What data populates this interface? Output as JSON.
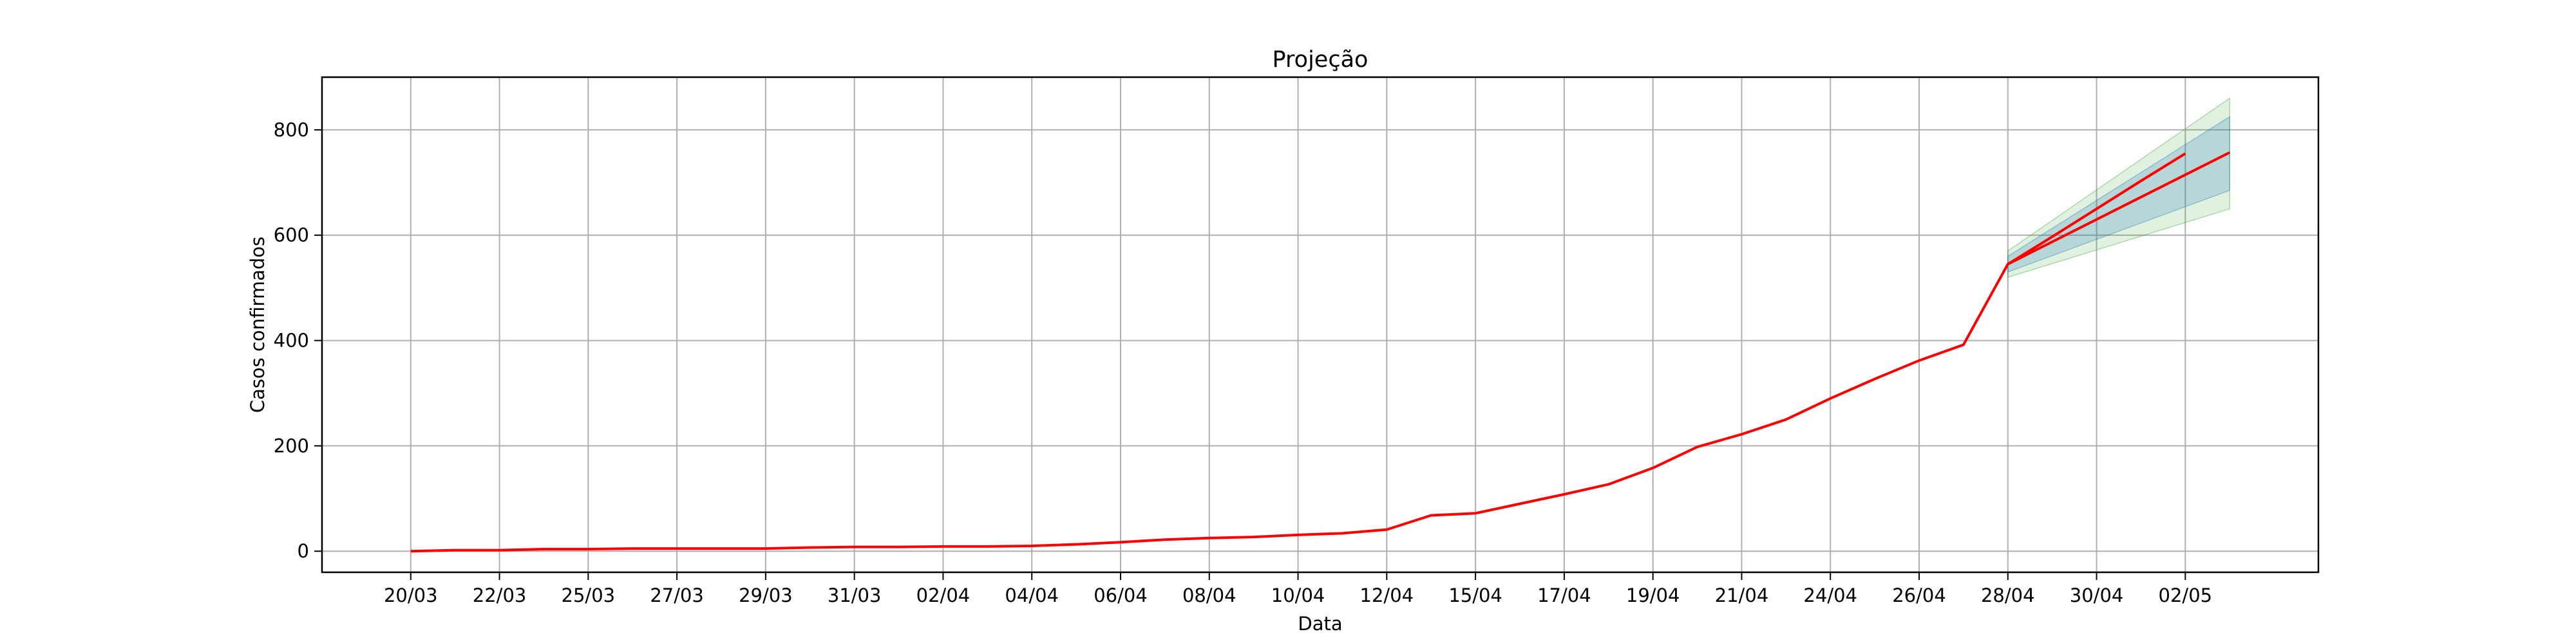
{
  "chart_data": {
    "type": "line",
    "title": "Projeção",
    "xlabel": "Data",
    "ylabel": "Casos confirmados",
    "grid": true,
    "xlim": [
      -1,
      21.5
    ],
    "ylim": [
      -40,
      900
    ],
    "y_ticks": [
      0,
      200,
      400,
      600,
      800
    ],
    "x_ticks": [
      {
        "x": 0,
        "label": "20/03"
      },
      {
        "x": 1,
        "label": "22/03"
      },
      {
        "x": 2,
        "label": "25/03"
      },
      {
        "x": 3,
        "label": "27/03"
      },
      {
        "x": 4,
        "label": "29/03"
      },
      {
        "x": 5,
        "label": "31/03"
      },
      {
        "x": 6,
        "label": "02/04"
      },
      {
        "x": 7,
        "label": "04/04"
      },
      {
        "x": 8,
        "label": "06/04"
      },
      {
        "x": 9,
        "label": "08/04"
      },
      {
        "x": 10,
        "label": "10/04"
      },
      {
        "x": 11,
        "label": "12/04"
      },
      {
        "x": 12,
        "label": "15/04"
      },
      {
        "x": 13,
        "label": "17/04"
      },
      {
        "x": 14,
        "label": "19/04"
      },
      {
        "x": 15,
        "label": "21/04"
      },
      {
        "x": 16,
        "label": "24/04"
      },
      {
        "x": 17,
        "label": "26/04"
      },
      {
        "x": 18,
        "label": "28/04"
      },
      {
        "x": 19,
        "label": "30/04"
      },
      {
        "x": 20,
        "label": "02/05"
      }
    ],
    "series": [
      {
        "color": "#ff0000",
        "points": [
          [
            0,
            0
          ],
          [
            0.5,
            2
          ],
          [
            1,
            2
          ],
          [
            1.5,
            4
          ],
          [
            2,
            4
          ],
          [
            2.5,
            5
          ],
          [
            3,
            5
          ],
          [
            3.5,
            5
          ],
          [
            4,
            5
          ],
          [
            4.5,
            7
          ],
          [
            5,
            8
          ],
          [
            5.5,
            8
          ],
          [
            6,
            9
          ],
          [
            6.5,
            9
          ],
          [
            7,
            10
          ],
          [
            7.5,
            13
          ],
          [
            8,
            17
          ],
          [
            8.5,
            22
          ],
          [
            9,
            25
          ],
          [
            9.5,
            27
          ],
          [
            10,
            31
          ],
          [
            10.5,
            34
          ],
          [
            11,
            41
          ],
          [
            11.5,
            68
          ],
          [
            12,
            72
          ],
          [
            12.5,
            90
          ],
          [
            13,
            108
          ],
          [
            13.5,
            127
          ],
          [
            14,
            158
          ],
          [
            14.5,
            198
          ],
          [
            15,
            222
          ],
          [
            15.5,
            250
          ],
          [
            16,
            290
          ],
          [
            16.5,
            327
          ],
          [
            17,
            362
          ],
          [
            17.5,
            392
          ],
          [
            18,
            545
          ],
          [
            18.5,
            597
          ],
          [
            19,
            650
          ],
          [
            19.5,
            703
          ],
          [
            20,
            755
          ]
        ]
      }
    ],
    "bands": [
      {
        "color": "#2ca02c",
        "opacity": 0.15,
        "x": [
          18,
          20.5
        ],
        "lower": [
          520,
          650
        ],
        "upper": [
          570,
          860
        ]
      },
      {
        "color": "#1f77b4",
        "opacity": 0.22,
        "x": [
          18,
          20.5
        ],
        "lower": [
          530,
          685
        ],
        "upper": [
          560,
          825
        ]
      }
    ],
    "projection_line": {
      "color": "#ff0000",
      "x": [
        18,
        20.5
      ],
      "y": [
        545,
        757
      ]
    }
  }
}
